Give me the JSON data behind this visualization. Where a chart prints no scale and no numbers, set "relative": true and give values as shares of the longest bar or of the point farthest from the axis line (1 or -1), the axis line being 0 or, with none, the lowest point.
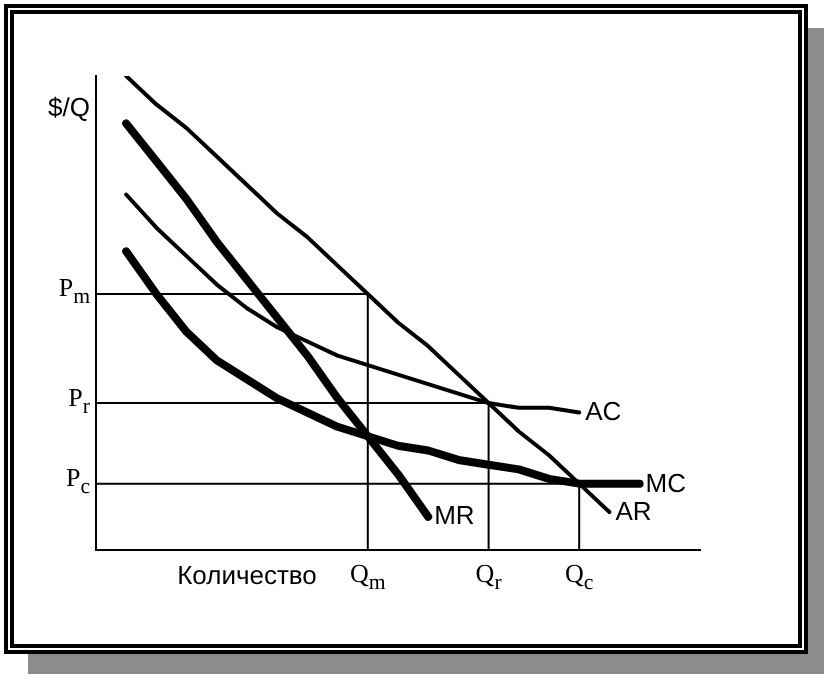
{
  "chart_data": {
    "type": "line",
    "relative": true,
    "xlabel": "Количество",
    "ylabel": "$/Q",
    "marker": "none",
    "categories": [
      null,
      null,
      null,
      null,
      null,
      null,
      null,
      null,
      null,
      "Q$_{m}$",
      null,
      null,
      null,
      "Q$_{r}$",
      null,
      null,
      "Q$_{c}$",
      null,
      null,
      null,
      null
    ],
    "series": [
      {
        "name": "AR",
        "color": "#000000",
        "values": [
          null,
          1,
          0.94,
          0.89,
          0.83,
          0.77,
          0.71,
          0.66,
          0.6,
          0.54,
          0.48,
          0.43,
          0.37,
          0.31,
          0.25,
          0.2,
          0.14,
          0.08,
          null,
          null,
          null
        ]
      },
      {
        "name": "MR",
        "color": "#000000",
        "values": [
          null,
          0.9,
          0.82,
          0.74,
          0.65,
          0.57,
          0.49,
          0.41,
          0.32,
          0.24,
          0.16,
          0.07,
          null,
          null,
          null,
          null,
          null,
          null,
          null,
          null,
          null
        ]
      },
      {
        "name": "AC",
        "color": "#000000",
        "values": [
          null,
          0.75,
          0.68,
          0.62,
          0.56,
          0.51,
          0.47,
          0.44,
          0.41,
          0.39,
          0.37,
          0.35,
          0.33,
          0.31,
          0.3,
          0.3,
          0.29,
          null,
          null,
          null,
          null
        ]
      },
      {
        "name": "MC",
        "color": "#000000",
        "values": [
          null,
          0.63,
          0.54,
          0.46,
          0.4,
          0.36,
          0.32,
          0.29,
          0.26,
          0.24,
          0.22,
          0.21,
          0.19,
          0.18,
          0.17,
          0.15,
          0.14,
          0.14,
          0.14,
          null,
          null
        ]
      }
    ],
    "ref_lines": [
      {
        "axis": "y",
        "value": 0.54,
        "label": "P$_{m}$",
        "color": "#000000"
      },
      {
        "axis": "y",
        "value": 0.31,
        "label": "P$_{r}$",
        "color": "#000000"
      },
      {
        "axis": "y",
        "value": 0.14,
        "label": "P$_{c}$",
        "color": "#000000"
      },
      {
        "axis": "x",
        "value": "Q$_{m}$",
        "color": "#000000"
      },
      {
        "axis": "x",
        "value": "Q$_{r}$",
        "color": "#000000"
      },
      {
        "axis": "x",
        "value": "Q$_{c}$",
        "color": "#000000"
      }
    ]
  }
}
